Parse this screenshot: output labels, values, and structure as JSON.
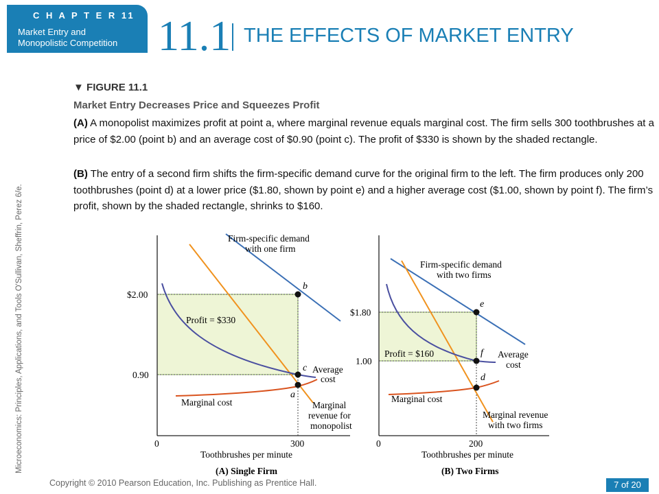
{
  "header": {
    "chapter_label": "C H A P T E R  11",
    "chapter_subtitle_line1": "Market Entry and",
    "chapter_subtitle_line2": "Monopolistic Competition",
    "section_number": "11.1",
    "section_title": "THE EFFECTS OF MARKET ENTRY"
  },
  "side_text": "Microeconomics: Principles, Applications, and Tools   O'Sullivan, Sheffrin, Perez   6/e.",
  "figure": {
    "label": "FIGURE 11.1",
    "subtitle": "Market Entry Decreases Price and Squeezes Profit",
    "caption_a_tag": "(A)",
    "caption_a_text": " A monopolist maximizes profit at point a, where marginal revenue equals marginal cost. The firm sells 300 toothbrushes at a price of $2.00 (point b) and an average cost of $0.90 (point c). The profit of $330 is shown by the shaded rectangle.",
    "caption_b_tag": "(B)",
    "caption_b_text": " The entry of a second firm shifts the firm-specific demand curve for the original firm to the left. The firm produces only 200 toothbrushes (point d) at a lower price ($1.80, shown by point e) and a higher average cost ($1.00, shown by point f). The firm’s profit, shown by the shaded rectangle, shrinks to $160."
  },
  "chart_data": [
    {
      "type": "line",
      "panel_title": "(A) Single Firm",
      "xlabel": "Toothbrushes per minute",
      "x_ticks": [
        "0",
        "300"
      ],
      "y_ticks": [
        "$2.00",
        "0.90"
      ],
      "equilibrium": {
        "quantity": 300,
        "price": 2.0,
        "average_cost": 0.9,
        "profit": 330
      },
      "series": [
        {
          "name": "Firm-specific demand with one firm",
          "color": "#3a6fb5"
        },
        {
          "name": "Average cost",
          "color": "#4a4fa0"
        },
        {
          "name": "Marginal cost",
          "color": "#d9531e"
        },
        {
          "name": "Marginal revenue for monopolist",
          "color": "#f0921e"
        }
      ],
      "points": [
        {
          "label": "b",
          "x": 300,
          "y": 2.0
        },
        {
          "label": "c",
          "x": 300,
          "y": 0.9
        },
        {
          "label": "a",
          "x": 300
        }
      ],
      "annotations": [
        "Profit = $330"
      ]
    },
    {
      "type": "line",
      "panel_title": "(B) Two Firms",
      "xlabel": "Toothbrushes per minute",
      "x_ticks": [
        "0",
        "200"
      ],
      "y_ticks": [
        "$1.80",
        "1.00"
      ],
      "equilibrium": {
        "quantity": 200,
        "price": 1.8,
        "average_cost": 1.0,
        "profit": 160
      },
      "series": [
        {
          "name": "Firm-specific demand with two firms",
          "color": "#3a6fb5"
        },
        {
          "name": "Average cost",
          "color": "#4a4fa0"
        },
        {
          "name": "Marginal cost",
          "color": "#d9531e"
        },
        {
          "name": "Marginal revenue with two firms",
          "color": "#f0921e"
        }
      ],
      "points": [
        {
          "label": "e",
          "x": 200,
          "y": 1.8
        },
        {
          "label": "f",
          "x": 200,
          "y": 1.0
        },
        {
          "label": "d",
          "x": 200
        }
      ],
      "annotations": [
        "Profit = $160"
      ]
    }
  ],
  "chart_text": {
    "a": {
      "demand_l1": "Firm-specific demand",
      "demand_l2": "with one firm",
      "profit": "Profit = $330",
      "ac_l1": "Average",
      "ac_l2": "cost",
      "mc": "Marginal cost",
      "mr_l1": "Marginal",
      "mr_l2": "revenue for",
      "mr_l3": "monopolist",
      "pt_b": "b",
      "pt_c": "c",
      "pt_a": "a",
      "y_hi": "$2.00",
      "y_lo": "0.90",
      "x0": "0",
      "xq": "300",
      "xlabel": "Toothbrushes per minute",
      "title": "(A) Single Firm"
    },
    "b": {
      "demand_l1": "Firm-specific demand",
      "demand_l2": "with two firms",
      "profit": "Profit = $160",
      "ac_l1": "Average",
      "ac_l2": "cost",
      "mc": "Marginal cost",
      "mr_l1": "Marginal revenue",
      "mr_l2": "with two firms",
      "pt_e": "e",
      "pt_f": "f",
      "pt_d": "d",
      "y_hi": "$1.80",
      "y_lo": "1.00",
      "x0": "0",
      "xq": "200",
      "xlabel": "Toothbrushes per minute",
      "title": "(B) Two Firms"
    }
  },
  "footer": {
    "copyright": "Copyright © 2010  Pearson Education, Inc. Publishing as Prentice Hall.",
    "page": "7 of 20"
  },
  "colors": {
    "brand": "#1a7fb5",
    "demand": "#3a6fb5",
    "average_cost": "#4a4fa0",
    "marginal_cost": "#d9531e",
    "marginal_revenue": "#f0921e",
    "profit_fill": "#eef5d6"
  }
}
